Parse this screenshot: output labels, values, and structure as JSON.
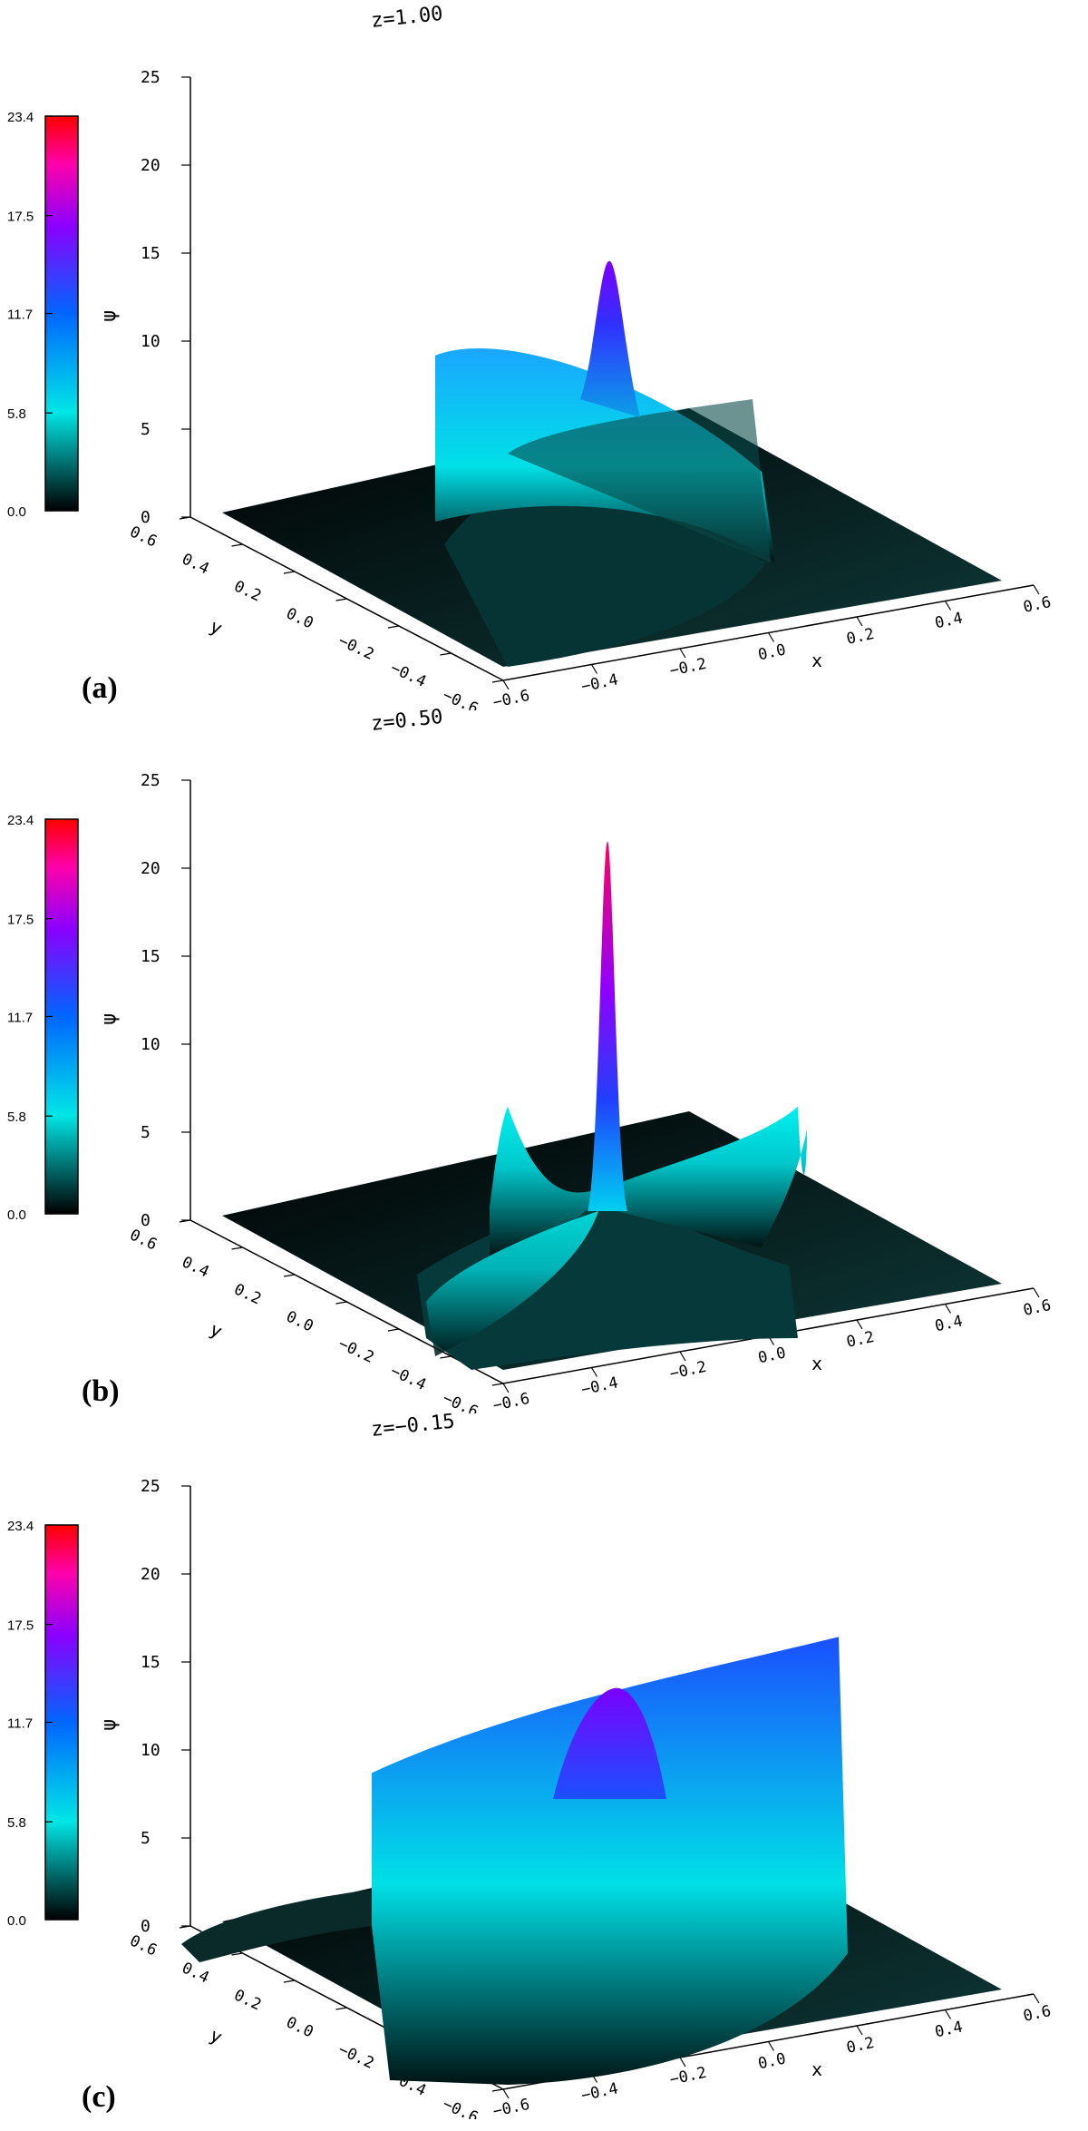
{
  "colorbar": {
    "ticks": [
      "0.0",
      "5.8",
      "11.7",
      "17.5",
      "23.4"
    ],
    "range": [
      0,
      23.4
    ],
    "stops": [
      "#000000",
      "#00e6e6",
      "#0066ff",
      "#8a00ff",
      "#ff00aa",
      "#ff0000"
    ]
  },
  "axes": {
    "zlabel": "ψ",
    "xlabel": "x",
    "ylabel": "y",
    "zticks": [
      "0",
      "5",
      "10",
      "15",
      "20",
      "25"
    ],
    "xticks": [
      "−0.6",
      "−0.4",
      "−0.2",
      "0.0",
      "0.2",
      "0.4",
      "0.6"
    ],
    "yticks": [
      "−0.6",
      "−0.4",
      "−0.2",
      "0.0",
      "0.2",
      "0.4",
      "0.6"
    ]
  },
  "chart_data": [
    {
      "type": "surface",
      "label": "(a)",
      "title": "z=1.00",
      "zlim": [
        0,
        25
      ],
      "xlim": [
        -0.6,
        0.6
      ],
      "ylim": [
        -0.6,
        0.6
      ],
      "peak": {
        "x": 0.0,
        "y": 0.0,
        "value": 13.0
      },
      "ridges": [
        {
          "name": "",
          "value": 11.5
        }
      ]
    },
    {
      "type": "surface",
      "label": "(b)",
      "title": "z=0.50",
      "zlim": [
        0,
        25
      ],
      "xlim": [
        -0.6,
        0.6
      ],
      "ylim": [
        -0.6,
        0.6
      ],
      "peak": {
        "x": 0.0,
        "y": 0.0,
        "value": 21.0
      },
      "ridges": [
        {
          "name": "",
          "value": 8.0
        }
      ]
    },
    {
      "type": "surface",
      "label": "(c)",
      "title": "z=−0.15",
      "zlim": [
        0,
        25
      ],
      "xlim": [
        -0.6,
        0.6
      ],
      "ylim": [
        -0.6,
        0.6
      ],
      "peak": {
        "x": 0.0,
        "y": 0.0,
        "value": 13.0
      },
      "ridges": [
        {
          "name": "",
          "value": 12.3
        }
      ]
    }
  ]
}
